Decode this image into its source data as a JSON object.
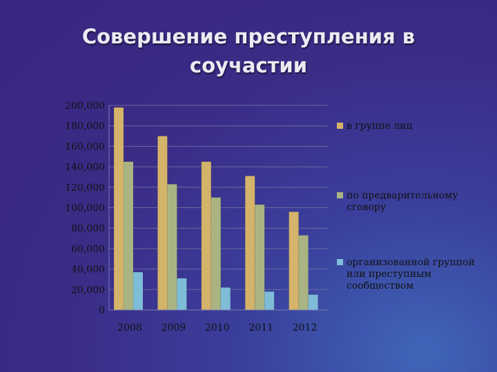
{
  "title": "Совершение преступления в соучастии",
  "chart_data": {
    "type": "bar",
    "categories": [
      "2008",
      "2009",
      "2010",
      "2011",
      "2012"
    ],
    "series": [
      {
        "name": "в группе лиц",
        "color": "#d4b36a",
        "values": [
          198000,
          170000,
          145000,
          131000,
          96000
        ]
      },
      {
        "name": "по предварительному сговору",
        "color": "#a9b482",
        "values": [
          145000,
          123000,
          110000,
          103000,
          73000
        ]
      },
      {
        "name": "организованной группой или преступным сообществом",
        "color": "#7fbcd8",
        "values": [
          37000,
          31000,
          22000,
          18000,
          15000
        ]
      }
    ],
    "ylim": [
      0,
      200000
    ],
    "yticks": [
      "0",
      "20,000",
      "40,000",
      "60,000",
      "80,000",
      "100,000",
      "120,000",
      "140,000",
      "160,000",
      "180,000",
      "200,000"
    ],
    "grid": true,
    "legend_position": "right"
  }
}
